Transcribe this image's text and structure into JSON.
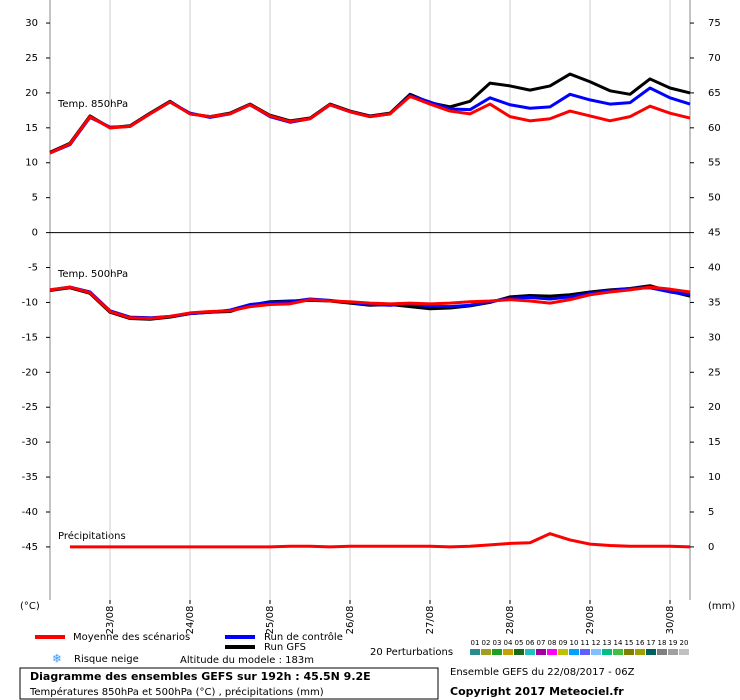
{
  "chart_data": {
    "type": "line",
    "x": [
      0,
      6,
      12,
      18,
      24,
      30,
      36,
      42,
      48,
      54,
      60,
      66,
      72,
      78,
      84,
      90,
      96,
      102,
      108,
      114,
      120,
      126,
      132,
      138,
      144,
      150,
      156,
      162,
      168,
      174,
      180,
      186,
      192
    ],
    "xlim": [
      0,
      192
    ],
    "xticks": [
      {
        "value": 18,
        "label": "23/08"
      },
      {
        "value": 42,
        "label": "24/08"
      },
      {
        "value": 66,
        "label": "25/08"
      },
      {
        "value": 90,
        "label": "26/08"
      },
      {
        "value": 114,
        "label": "27/08"
      },
      {
        "value": 138,
        "label": "28/08"
      },
      {
        "value": 162,
        "label": "29/08"
      },
      {
        "value": 186,
        "label": "30/08"
      }
    ],
    "ylim": [
      -52.6,
      33.3
    ],
    "yticks": [
      30,
      25,
      20,
      15,
      10,
      5,
      0,
      -5,
      -10,
      -15,
      -20,
      -25,
      -30,
      -35,
      -40,
      -45
    ],
    "y2lim": [
      -7.6,
      78.3
    ],
    "y2ticks": [
      75,
      70,
      65,
      60,
      55,
      50,
      45,
      40,
      35,
      30,
      25,
      20,
      15,
      10,
      5,
      0
    ],
    "ylabel": "(°C)",
    "y2label": "(mm)",
    "panels": [
      {
        "label": "Temp. 850hPa",
        "series": [
          {
            "name": "Run GFS",
            "color": "#000000",
            "values": [
              11.5,
              12.8,
              16.7,
              15,
              15.3,
              17.1,
              18.8,
              17,
              16.6,
              17.1,
              18.4,
              16.8,
              16,
              16.4,
              18.4,
              17.4,
              16.7,
              17.1,
              19.8,
              18.6,
              18,
              18.8,
              21.4,
              21,
              20.4,
              21,
              22.7,
              21.6,
              20.3,
              19.8,
              22,
              20.7,
              20
            ]
          },
          {
            "name": "Run de contrôle",
            "color": "#0000ff",
            "values": [
              11.4,
              12.6,
              16.5,
              15.1,
              15.2,
              17,
              18.7,
              17.1,
              16.5,
              17,
              18.3,
              16.6,
              15.8,
              16.3,
              18.3,
              17.3,
              16.6,
              17,
              19.6,
              18.7,
              17.7,
              17.6,
              19.3,
              18.3,
              17.8,
              18,
              19.8,
              19,
              18.4,
              18.6,
              20.7,
              19.3,
              18.4
            ]
          },
          {
            "name": "Moyenne des scénarios",
            "color": "#ff0000",
            "values": [
              11.4,
              12.7,
              16.6,
              15,
              15.2,
              17,
              18.7,
              17,
              16.6,
              17,
              18.3,
              16.7,
              15.9,
              16.3,
              18.3,
              17.3,
              16.6,
              17,
              19.5,
              18.4,
              17.4,
              17,
              18.4,
              16.6,
              16,
              16.3,
              17.4,
              16.7,
              16,
              16.6,
              18.1,
              17.1,
              16.4
            ]
          }
        ]
      },
      {
        "label": "Temp. 500hPa",
        "series": [
          {
            "color": "#000000",
            "values": [
              -8.3,
              -7.9,
              -8.7,
              -11.4,
              -12.3,
              -12.4,
              -12.1,
              -11.6,
              -11.4,
              -11.3,
              -10.4,
              -9.9,
              -9.8,
              -9.7,
              -9.8,
              -10.1,
              -10.4,
              -10.3,
              -10.6,
              -10.9,
              -10.8,
              -10.5,
              -10,
              -9.2,
              -9,
              -9.1,
              -8.9,
              -8.5,
              -8.2,
              -8,
              -7.6,
              -8.4,
              -9.1
            ]
          },
          {
            "color": "#0000ff",
            "values": [
              -8.2,
              -7.8,
              -8.5,
              -11.2,
              -12.1,
              -12.2,
              -12,
              -11.6,
              -11.4,
              -11.1,
              -10.3,
              -10,
              -9.9,
              -9.5,
              -9.7,
              -10,
              -10.3,
              -10.4,
              -10.2,
              -10.5,
              -10.6,
              -10.4,
              -9.9,
              -9.4,
              -9.3,
              -9.5,
              -9.2,
              -8.7,
              -8.3,
              -8,
              -7.9,
              -8.5,
              -8.9
            ]
          },
          {
            "color": "#ff0000",
            "values": [
              -8.2,
              -7.8,
              -8.6,
              -11.3,
              -12.2,
              -12.3,
              -12,
              -11.5,
              -11.3,
              -11.2,
              -10.6,
              -10.3,
              -10.2,
              -9.6,
              -9.8,
              -9.9,
              -10.1,
              -10.2,
              -10.1,
              -10.2,
              -10.1,
              -9.9,
              -9.8,
              -9.6,
              -9.8,
              -10.1,
              -9.6,
              -8.9,
              -8.5,
              -8.2,
              -7.8,
              -8.1,
              -8.5
            ]
          }
        ]
      },
      {
        "label": "Précipitations",
        "series": [
          {
            "color": "#ff0000",
            "axis": "y2",
            "values": [
              null,
              0,
              0,
              0,
              0,
              0,
              0,
              0,
              0,
              0,
              0,
              0,
              0.1,
              0.1,
              0,
              0.1,
              0.1,
              0.1,
              0.1,
              0.1,
              0,
              0.1,
              0.3,
              0.5,
              0.6,
              1.9,
              1.0,
              0.4,
              0.2,
              0.1,
              0.1,
              0.1,
              0
            ]
          }
        ]
      }
    ],
    "snow_label": "Risque neige",
    "altitude": "Altitude du modele : 183m",
    "perturbations": {
      "label": "20 Perturbations",
      "members": [
        {
          "label": "01",
          "color": "#2a8c8c"
        },
        {
          "label": "02",
          "color": "#a0a020"
        },
        {
          "label": "03",
          "color": "#20a020"
        },
        {
          "label": "04",
          "color": "#c8a000"
        },
        {
          "label": "05",
          "color": "#1a6a1a"
        },
        {
          "label": "06",
          "color": "#20c0c0"
        },
        {
          "label": "07",
          "color": "#a000a0"
        },
        {
          "label": "08",
          "color": "#ff00ff"
        },
        {
          "label": "09",
          "color": "#c0c000"
        },
        {
          "label": "10",
          "color": "#00a0ff"
        },
        {
          "label": "11",
          "color": "#6060ff"
        },
        {
          "label": "12",
          "color": "#80c0ff"
        },
        {
          "label": "13",
          "color": "#00c080"
        },
        {
          "label": "14",
          "color": "#40c040"
        },
        {
          "label": "15",
          "color": "#808000"
        },
        {
          "label": "16",
          "color": "#a0a000"
        },
        {
          "label": "17",
          "color": "#006060"
        },
        {
          "label": "18",
          "color": "#808080"
        },
        {
          "label": "19",
          "color": "#a0a0a0"
        },
        {
          "label": "20",
          "color": "#c0c0c0"
        }
      ]
    },
    "title": "Diagramme des ensembles GEFS sur 192h : 45.5N 9.2E",
    "subtitle": "Températures 850hPa et 500hPa (°C) , précipitations (mm)",
    "run_info": "Ensemble GEFS du 22/08/2017 - 06Z",
    "copyright": "Copyright 2017 Meteociel.fr"
  }
}
